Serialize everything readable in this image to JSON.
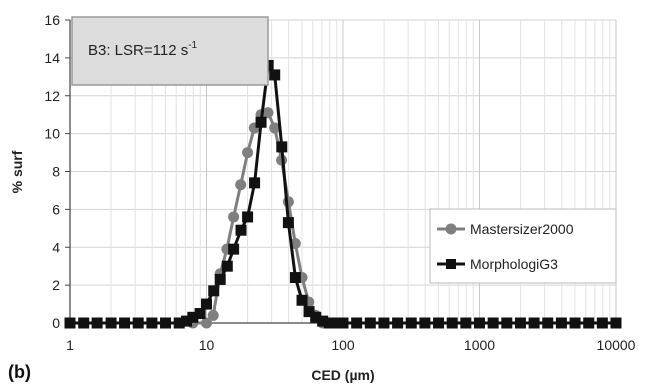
{
  "chart_data": {
    "type": "line",
    "panel_label": "(b)",
    "inset": {
      "prefix": "B3: LSR=112 s",
      "superscript": "-1"
    },
    "xlabel": "CED (µm)",
    "ylabel": "% surf",
    "xscale": "log",
    "xlim": [
      1,
      10000
    ],
    "ylim": [
      0,
      16
    ],
    "x_ticks": [
      1,
      10,
      100,
      1000,
      10000
    ],
    "x_tick_labels": [
      "1",
      "10",
      "100",
      "1000",
      "10000"
    ],
    "y_ticks": [
      0,
      2,
      4,
      6,
      8,
      10,
      12,
      14,
      16
    ],
    "y_tick_labels": [
      "0",
      "2",
      "4",
      "6",
      "8",
      "10",
      "12",
      "14",
      "16"
    ],
    "grid": true,
    "legend_position": "right",
    "series": [
      {
        "name": "Mastersizer2000",
        "color": "#7f7f7f",
        "marker": "circle",
        "x": [
          1,
          1.26,
          1.58,
          2,
          2.51,
          3.16,
          3.98,
          5.01,
          6.31,
          7.94,
          10,
          11.2,
          12.6,
          14.1,
          15.8,
          17.8,
          20,
          22.4,
          25.1,
          28.2,
          31.6,
          35.5,
          39.8,
          44.7,
          50.1,
          56.2,
          63.1,
          70.8,
          79.4,
          89.1,
          100,
          125.9,
          158.5,
          199.5,
          251.2,
          316.2,
          398.1,
          501.2,
          631,
          794.3,
          1000,
          1259,
          1585,
          1995,
          2512,
          3162,
          3981,
          5012,
          6310,
          7943,
          10000
        ],
        "y": [
          0,
          0,
          0,
          0,
          0,
          0,
          0,
          0,
          0,
          0,
          0,
          0.4,
          2.6,
          3.9,
          5.6,
          7.3,
          9.0,
          10.3,
          11.0,
          11.1,
          10.3,
          8.6,
          6.4,
          4.2,
          2.4,
          1.1,
          0.4,
          0,
          0,
          0,
          0,
          0,
          0,
          0,
          0,
          0,
          0,
          0,
          0,
          0,
          0,
          0,
          0,
          0,
          0,
          0,
          0,
          0,
          0,
          0,
          0
        ]
      },
      {
        "name": "MorphologiG3",
        "color": "#111111",
        "marker": "square",
        "x": [
          1,
          1.26,
          1.58,
          2,
          2.51,
          3.16,
          3.98,
          5.01,
          6.31,
          7.14,
          7.94,
          8.98,
          10,
          11.3,
          12.6,
          14.2,
          15.8,
          17.9,
          20,
          22.5,
          25.1,
          28.3,
          31.6,
          35.6,
          39.8,
          44.8,
          50.1,
          56.4,
          63.1,
          71,
          79.4,
          89.3,
          100,
          125.9,
          158.5,
          199.5,
          251.2,
          316.2,
          398.1,
          501.2,
          631,
          794.3,
          1000,
          1259,
          1585,
          1995,
          2512,
          3162,
          3981,
          5012,
          6310,
          7943,
          10000
        ],
        "y": [
          0,
          0,
          0,
          0,
          0,
          0,
          0,
          0,
          0,
          0.1,
          0.3,
          0.5,
          1.0,
          1.7,
          2.3,
          3.0,
          3.9,
          4.9,
          5.6,
          7.4,
          10.6,
          13.6,
          13.1,
          9.3,
          5.3,
          2.4,
          1.2,
          0.6,
          0.3,
          0.1,
          0,
          0,
          0,
          0,
          0,
          0,
          0,
          0,
          0,
          0,
          0,
          0,
          0,
          0,
          0,
          0,
          0,
          0,
          0,
          0,
          0,
          0,
          0
        ]
      }
    ]
  }
}
